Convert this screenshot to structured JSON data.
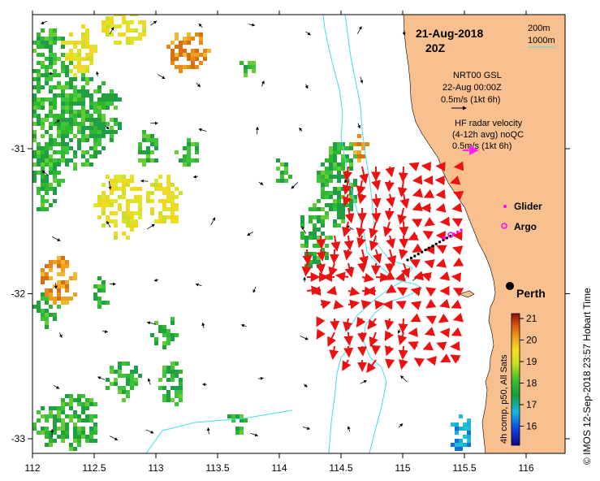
{
  "header": {
    "date": "21-Aug-2018",
    "time": "20Z"
  },
  "isobaths": {
    "label_200": "200m",
    "label_1000": "1000m",
    "color": "#44ddee"
  },
  "model": {
    "title": "NRT00 GSL",
    "time": "22-Aug 00:00Z",
    "scale": "0.5m/s (1kt 6h)"
  },
  "hf_radar": {
    "title": "HF radar velocity",
    "subtitle": "(4-12h avg) noQC",
    "scale": "0.5m/s (1kt 6h)",
    "arrow_color": "#ee1111",
    "scale_arrow_color": "#ff22ff"
  },
  "legend": {
    "glider": "Glider",
    "argo": "Argo",
    "glider_color": "#ff00ff",
    "argo_color": "#ff00ff"
  },
  "city": {
    "name": "Perth"
  },
  "colorbar": {
    "title": "4h comp, p50, All Sats",
    "ticks": [
      "21",
      "20",
      "19",
      "18",
      "17",
      "16"
    ]
  },
  "credit": "© IMOS 12-Sep-2018 23:57 Hobart Time",
  "axes": {
    "x_ticks": [
      "112",
      "112.5",
      "113",
      "113.5",
      "114",
      "114.5",
      "115",
      "115.5",
      "116"
    ],
    "y_ticks": [
      "-31",
      "-32",
      "-33"
    ],
    "x_values": [
      112,
      112.5,
      113,
      113.5,
      114,
      114.5,
      115,
      115.5,
      116
    ],
    "y_values": [
      -31,
      -32,
      -33
    ],
    "lon_range": [
      112,
      116.3
    ],
    "lat_range": [
      -33.1,
      -30
    ]
  },
  "land_color": "#f8c08e"
}
